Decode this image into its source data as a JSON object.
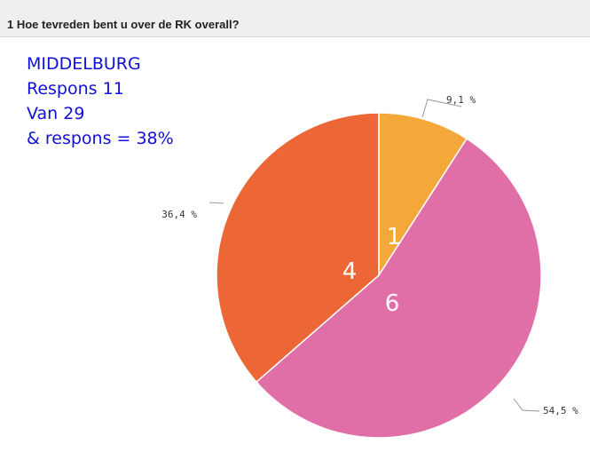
{
  "header": {
    "title": "1 Hoe tevreden bent u over de RK overall?"
  },
  "note": {
    "lines": [
      "MIDDELBURG",
      "Respons 11",
      "Van 29",
      "& respons = 38%"
    ],
    "color": "#1010d8"
  },
  "chart_data": {
    "type": "pie",
    "title": "1 Hoe tevreden bent u over de RK overall?",
    "slices": [
      {
        "label": "9,1 %",
        "percent": 9.1,
        "count_label": "1",
        "color": "#f5a83a"
      },
      {
        "label": "54,5 %",
        "percent": 54.5,
        "count_label": "6",
        "color": "#e06fa8"
      },
      {
        "label": "36,4 %",
        "percent": 36.4,
        "count_label": "4",
        "color": "#ec6735"
      }
    ],
    "start": "12 o'clock",
    "direction": "clockwise",
    "legend": "none"
  }
}
